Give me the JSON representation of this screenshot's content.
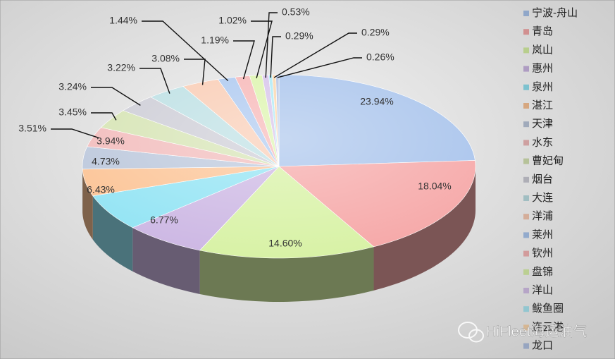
{
  "chart_data": {
    "type": "pie3d",
    "categories": [
      "宁波-舟山",
      "青岛",
      "岚山",
      "惠州",
      "泉州",
      "湛江",
      "天津",
      "水东",
      "曹妃甸",
      "烟台",
      "大连",
      "洋浦",
      "莱州",
      "钦州",
      "盘锦",
      "洋山",
      "鲅鱼圈",
      "连云港",
      "龙口"
    ],
    "values": [
      23.94,
      18.04,
      14.6,
      6.77,
      6.43,
      4.73,
      3.94,
      3.51,
      3.45,
      3.24,
      3.22,
      3.08,
      1.44,
      1.19,
      1.02,
      0.53,
      0.29,
      0.29,
      0.26
    ],
    "value_labels": [
      "23.94%",
      "18.04%",
      "14.60%",
      "6.77%",
      "6.43%",
      "4.73%",
      "3.94%",
      "3.51%",
      "3.45%",
      "3.24%",
      "3.22%",
      "3.08%",
      "1.44%",
      "1.19%",
      "1.02%",
      "0.53%",
      "0.29%",
      "0.29%",
      "0.26%"
    ],
    "colors": [
      "#a9c4ec",
      "#f6a9a9",
      "#d8f2a6",
      "#cdb8e4",
      "#93e4f4",
      "#fcc496",
      "#bcc8dc",
      "#f2bcbc",
      "#d6e4b4",
      "#cdcdd6",
      "#bde0e4",
      "#f9ccb4",
      "#acc8f0",
      "#f7b6b6",
      "#dcf4ac",
      "#d6c2ea",
      "#ace9f5",
      "#fcd6ac",
      "#b2c2e2"
    ],
    "legend": "right"
  },
  "watermark": "HiFleet海运油气"
}
